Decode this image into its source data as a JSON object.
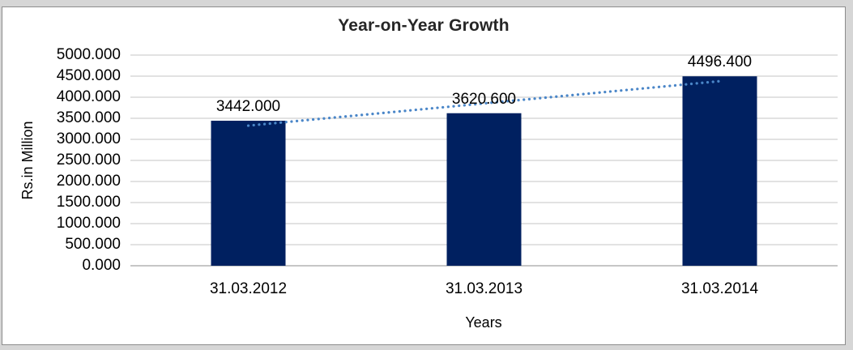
{
  "frame": {
    "outer_background": "#d6d6d6",
    "chart_background": "#ffffff",
    "chart_border": "#8c8c8c"
  },
  "chart_data": {
    "type": "bar",
    "title": "Year-on-Year Growth",
    "xlabel": "Years",
    "ylabel": "Rs.in Million",
    "categories": [
      "31.03.2012",
      "31.03.2013",
      "31.03.2014"
    ],
    "values": [
      3442.0,
      3620.6,
      4496.4
    ],
    "value_labels": [
      "3442.000",
      "3620.600",
      "4496.400"
    ],
    "ylim": [
      0,
      5000
    ],
    "y_tick_step": 500,
    "y_tick_labels": [
      "5000.000",
      "4500.000",
      "4000.000",
      "3500.000",
      "3000.000",
      "2500.000",
      "2000.000",
      "1500.000",
      "1000.000",
      "500.000",
      "0.000"
    ],
    "grid": true,
    "legend": "none",
    "bar_color": "#002060",
    "gridline_color": "#d9d9d9",
    "axis_line_color": "#c6c6c6",
    "text_color": "#000000",
    "title_color": "#262626",
    "trendline": {
      "type": "linear",
      "style": "dotted",
      "color": "#4a86c8"
    }
  }
}
